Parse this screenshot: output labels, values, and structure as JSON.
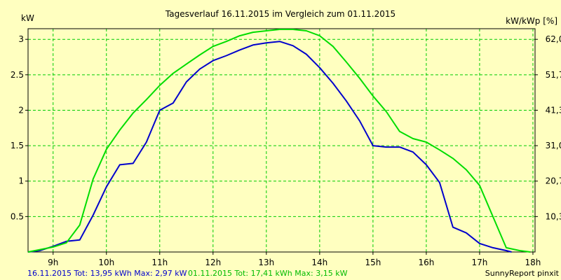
{
  "chart_data": {
    "type": "line",
    "title": "Tagesverlauf 16.11.2015 im Vergleich zum 01.11.2015",
    "ylabel_left": "kW",
    "ylabel_right": "kW/kWp [%]",
    "ylim": [
      0,
      3.15
    ],
    "grid": true,
    "x_ticks": [
      "9h",
      "10h",
      "11h",
      "12h",
      "13h",
      "14h",
      "15h",
      "16h",
      "17h",
      "18h"
    ],
    "y_ticks_left": [
      "0.5",
      "1",
      "1.5",
      "2",
      "2.5",
      "3"
    ],
    "y_ticks_right": [
      "10,3",
      "20,7",
      "31,0",
      "41,3",
      "51,7",
      "62,0"
    ],
    "series": [
      {
        "name": "16.11.2015",
        "color": "#0000cc",
        "points": [
          [
            8.53,
            0.0
          ],
          [
            8.75,
            0.02
          ],
          [
            9.0,
            0.08
          ],
          [
            9.25,
            0.15
          ],
          [
            9.5,
            0.17
          ],
          [
            9.75,
            0.52
          ],
          [
            10.0,
            0.92
          ],
          [
            10.25,
            1.23
          ],
          [
            10.5,
            1.25
          ],
          [
            10.75,
            1.55
          ],
          [
            11.0,
            2.0
          ],
          [
            11.25,
            2.1
          ],
          [
            11.5,
            2.4
          ],
          [
            11.75,
            2.58
          ],
          [
            12.0,
            2.7
          ],
          [
            12.25,
            2.77
          ],
          [
            12.5,
            2.85
          ],
          [
            12.75,
            2.92
          ],
          [
            13.0,
            2.95
          ],
          [
            13.25,
            2.97
          ],
          [
            13.5,
            2.91
          ],
          [
            13.75,
            2.79
          ],
          [
            14.0,
            2.6
          ],
          [
            14.25,
            2.38
          ],
          [
            14.5,
            2.13
          ],
          [
            14.75,
            1.85
          ],
          [
            15.0,
            1.5
          ],
          [
            15.25,
            1.48
          ],
          [
            15.5,
            1.48
          ],
          [
            15.75,
            1.41
          ],
          [
            16.0,
            1.23
          ],
          [
            16.25,
            0.98
          ],
          [
            16.5,
            0.35
          ],
          [
            16.75,
            0.27
          ],
          [
            17.0,
            0.12
          ],
          [
            17.25,
            0.06
          ],
          [
            17.5,
            0.02
          ],
          [
            17.6,
            0.0
          ]
        ]
      },
      {
        "name": "01.11.2015",
        "color": "#00dd00",
        "points": [
          [
            8.53,
            0.0
          ],
          [
            9.0,
            0.07
          ],
          [
            9.25,
            0.13
          ],
          [
            9.5,
            0.38
          ],
          [
            9.75,
            1.03
          ],
          [
            10.0,
            1.45
          ],
          [
            10.25,
            1.72
          ],
          [
            10.5,
            1.96
          ],
          [
            10.75,
            2.15
          ],
          [
            11.0,
            2.35
          ],
          [
            11.25,
            2.52
          ],
          [
            11.5,
            2.65
          ],
          [
            11.75,
            2.78
          ],
          [
            12.0,
            2.9
          ],
          [
            12.25,
            2.97
          ],
          [
            12.5,
            3.05
          ],
          [
            12.75,
            3.1
          ],
          [
            13.0,
            3.12
          ],
          [
            13.25,
            3.14
          ],
          [
            13.5,
            3.14
          ],
          [
            13.75,
            3.12
          ],
          [
            14.0,
            3.05
          ],
          [
            14.25,
            2.9
          ],
          [
            14.5,
            2.68
          ],
          [
            14.75,
            2.45
          ],
          [
            15.0,
            2.2
          ],
          [
            15.25,
            1.98
          ],
          [
            15.5,
            1.7
          ],
          [
            15.75,
            1.6
          ],
          [
            16.0,
            1.55
          ],
          [
            16.25,
            1.44
          ],
          [
            16.5,
            1.32
          ],
          [
            16.75,
            1.16
          ],
          [
            17.0,
            0.94
          ],
          [
            17.25,
            0.5
          ],
          [
            17.5,
            0.06
          ],
          [
            17.75,
            0.02
          ],
          [
            17.95,
            0.0
          ]
        ]
      }
    ]
  },
  "footer": {
    "series1_text": "16.11.2015 Tot: 13,95 kWh Max: 2,97 kW",
    "series2_text": "01.11.2015 Tot: 17,41 kWh Max: 3,15 kW",
    "credit": "SunnyReport pinxit"
  },
  "colors": {
    "background": "#ffffc0",
    "grid": "#00cc00",
    "axis": "#000000"
  }
}
